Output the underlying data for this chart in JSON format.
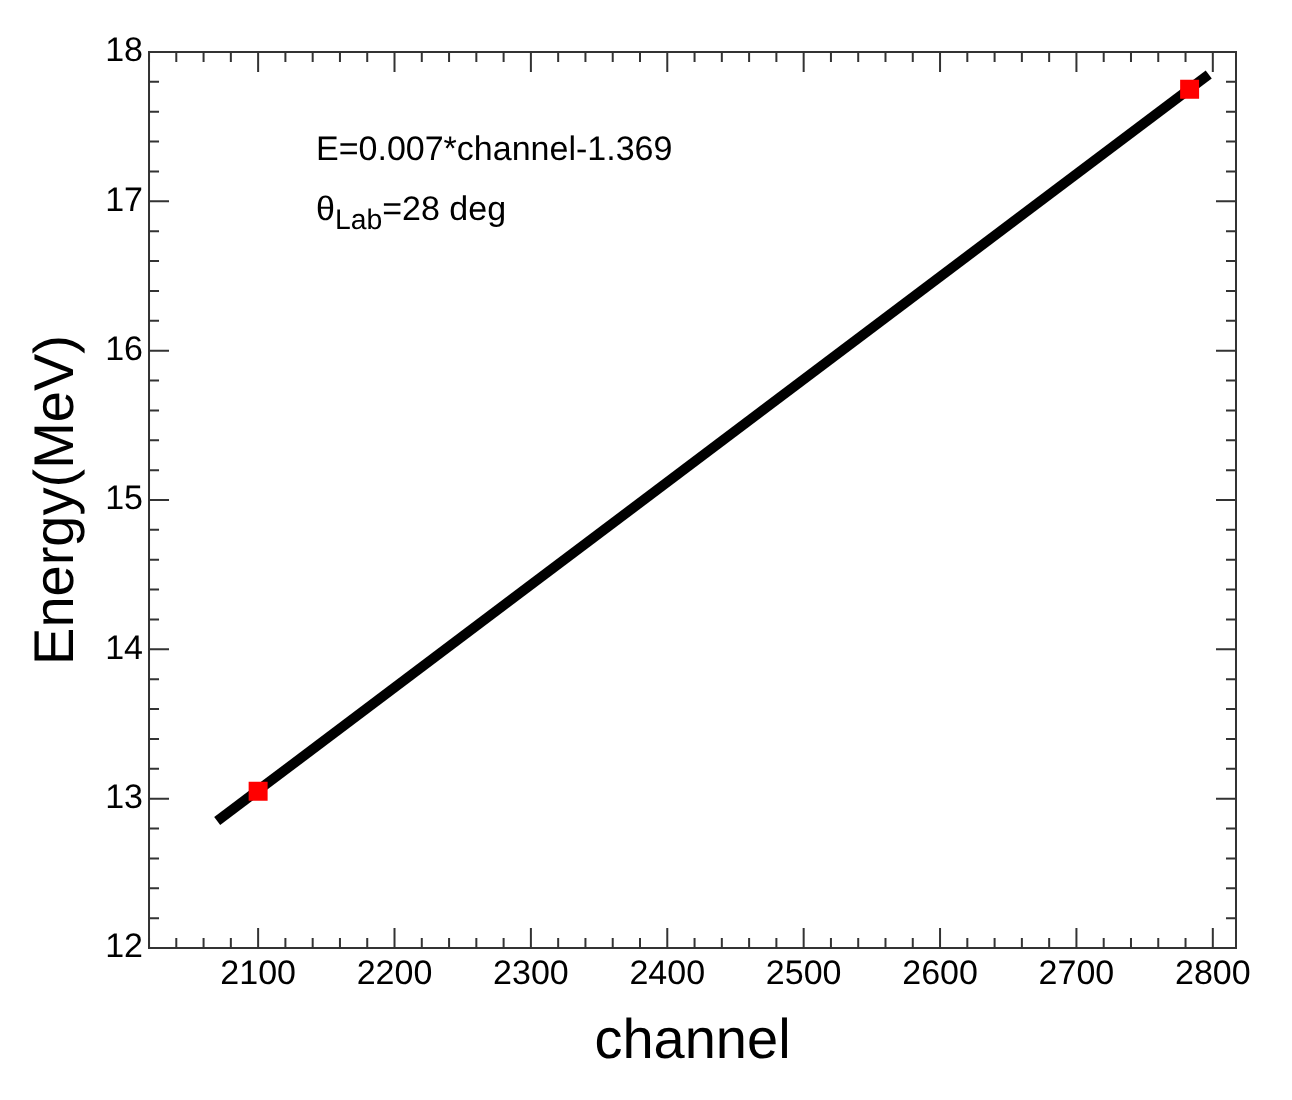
{
  "chart_data": {
    "type": "scatter",
    "xlabel": "channel",
    "ylabel": "Energy(MeV)",
    "annotations": [
      "E=0.007*channel-1.369",
      "θ$_{Lab}$=28 deg"
    ],
    "xlim": [
      2020,
      2817
    ],
    "xticks": [
      {
        "value": 2020,
        "label": null
      },
      {
        "value": 2040,
        "label": null
      },
      {
        "value": 2060,
        "label": null
      },
      {
        "value": 2080,
        "label": null
      },
      2100,
      {
        "value": 2120,
        "label": null
      },
      {
        "value": 2140,
        "label": null
      },
      {
        "value": 2160,
        "label": null
      },
      {
        "value": 2180,
        "label": null
      },
      2200,
      {
        "value": 2220,
        "label": null
      },
      {
        "value": 2240,
        "label": null
      },
      {
        "value": 2260,
        "label": null
      },
      {
        "value": 2280,
        "label": null
      },
      2300,
      {
        "value": 2320,
        "label": null
      },
      {
        "value": 2340,
        "label": null
      },
      {
        "value": 2360,
        "label": null
      },
      {
        "value": 2380,
        "label": null
      },
      2400,
      {
        "value": 2420,
        "label": null
      },
      {
        "value": 2440,
        "label": null
      },
      {
        "value": 2460,
        "label": null
      },
      {
        "value": 2480,
        "label": null
      },
      2500,
      {
        "value": 2520,
        "label": null
      },
      {
        "value": 2540,
        "label": null
      },
      {
        "value": 2560,
        "label": null
      },
      {
        "value": 2580,
        "label": null
      },
      2600,
      {
        "value": 2620,
        "label": null
      },
      {
        "value": 2640,
        "label": null
      },
      {
        "value": 2660,
        "label": null
      },
      {
        "value": 2680,
        "label": null
      },
      2700,
      {
        "value": 2720,
        "label": null
      },
      {
        "value": 2740,
        "label": null
      },
      {
        "value": 2760,
        "label": null
      },
      {
        "value": 2780,
        "label": null
      },
      2800
    ],
    "ylim": [
      12,
      18
    ],
    "yticks": [
      12,
      {
        "value": 12.2,
        "label": null
      },
      {
        "value": 12.4,
        "label": null
      },
      {
        "value": 12.6,
        "label": null
      },
      {
        "value": 12.8,
        "label": null
      },
      13,
      {
        "value": 13.2,
        "label": null
      },
      {
        "value": 13.4,
        "label": null
      },
      {
        "value": 13.6,
        "label": null
      },
      {
        "value": 13.8,
        "label": null
      },
      14,
      {
        "value": 14.2,
        "label": null
      },
      {
        "value": 14.4,
        "label": null
      },
      {
        "value": 14.6,
        "label": null
      },
      {
        "value": 14.8,
        "label": null
      },
      15,
      {
        "value": 15.2,
        "label": null
      },
      {
        "value": 15.4,
        "label": null
      },
      {
        "value": 15.6,
        "label": null
      },
      {
        "value": 15.8,
        "label": null
      },
      16,
      {
        "value": 16.2,
        "label": null
      },
      {
        "value": 16.4,
        "label": null
      },
      {
        "value": 16.6,
        "label": null
      },
      {
        "value": 16.8,
        "label": null
      },
      17,
      {
        "value": 17.2,
        "label": null
      },
      {
        "value": 17.4,
        "label": null
      },
      {
        "value": 17.6,
        "label": null
      },
      {
        "value": 17.8,
        "label": null
      },
      18
    ],
    "grid": false,
    "legend": false,
    "series": [
      {
        "type": "line",
        "color": "#000000",
        "x": [
          2070,
          2797
        ],
        "values": [
          12.85,
          17.85
        ],
        "marker": "none"
      },
      {
        "color": "#ff0000",
        "x": [
          2100,
          2783
        ],
        "values": [
          13.05,
          17.75
        ],
        "marker": "square"
      }
    ]
  }
}
